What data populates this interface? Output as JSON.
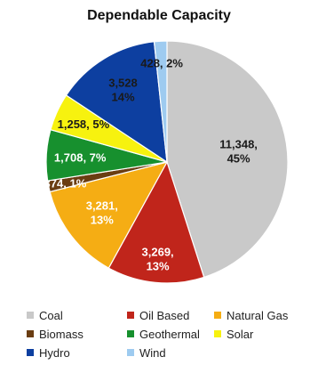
{
  "chart_data": {
    "type": "pie",
    "title": "Dependable Capacity",
    "slices": [
      {
        "name": "Coal",
        "value": 11348,
        "label": "11,348,",
        "percent_label": "45%",
        "color": "#c9c9c9"
      },
      {
        "name": "Oil Based",
        "value": 3269,
        "label": "3,269,",
        "percent_label": "13%",
        "color": "#c0251b"
      },
      {
        "name": "Natural Gas",
        "value": 3281,
        "label": "3,281,",
        "percent_label": "13%",
        "color": "#f5ad14"
      },
      {
        "name": "Biomass",
        "value": 374,
        "label": "374, 1%",
        "percent_label": "",
        "color": "#6a3d12"
      },
      {
        "name": "Geothermal",
        "value": 1708,
        "label": "1,708, 7%",
        "percent_label": "",
        "color": "#17902e"
      },
      {
        "name": "Solar",
        "value": 1258,
        "label": "1,258, 5%",
        "percent_label": "",
        "color": "#f7f20f"
      },
      {
        "name": "Hydro",
        "value": 3528,
        "label": "3,528",
        "percent_label": "14%",
        "color": "#0d3fa0"
      },
      {
        "name": "Wind",
        "value": 428,
        "label": "428, 2%",
        "percent_label": "",
        "color": "#9ecbf0"
      }
    ],
    "legend": [
      "Coal",
      "Oil Based",
      "Natural Gas",
      "Biomass",
      "Geothermal",
      "Solar",
      "Hydro",
      "Wind"
    ],
    "legend_placement": "bottom"
  }
}
